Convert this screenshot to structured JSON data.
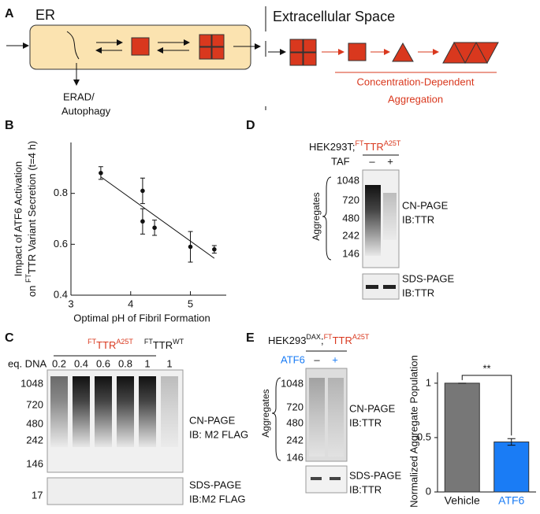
{
  "panel_a": {
    "label": "A",
    "er": "ER",
    "erad": [
      "ERAD/",
      "Autophagy"
    ],
    "extracellular": "Extracellular Space",
    "aggregation_note": [
      "Concentration-Dependent",
      "Aggregation"
    ]
  },
  "panel_c": {
    "label": "C",
    "construct_1": [
      "FT",
      "TTR",
      "A25T"
    ],
    "construct_2": [
      "FT",
      "TTR",
      "WT"
    ],
    "eq_dna_label": "eq. DNA",
    "lanes": [
      "0.2",
      "0.4",
      "0.6",
      "0.8",
      "1",
      "1"
    ],
    "markers": [
      "1048",
      "720",
      "480",
      "242",
      "146"
    ],
    "cn_page": [
      "CN-PAGE",
      "IB: M2 FLAG"
    ],
    "sds_page": [
      "SDS-PAGE",
      "IB:M2 FLAG"
    ],
    "sds_marker": "17"
  },
  "panel_d": {
    "label": "D",
    "cell": "HEK293T;",
    "construct": [
      "FT",
      "TTR",
      "A25T"
    ],
    "treatment": "TAF",
    "lanes": [
      "–",
      "+"
    ],
    "markers": [
      "1048",
      "720",
      "480",
      "242",
      "146"
    ],
    "aggregates": "Aggregates",
    "cn_page": [
      "CN-PAGE",
      "IB:TTR"
    ],
    "sds_page": [
      "SDS-PAGE",
      "IB:TTR"
    ]
  },
  "panel_e": {
    "label": "E",
    "cell": [
      "HEK293",
      "DAX",
      ";"
    ],
    "construct": [
      "FT",
      "TTR",
      "A25T"
    ],
    "treatment": "ATF6",
    "lanes": [
      "–",
      "+"
    ],
    "markers": [
      "1048",
      "720",
      "480",
      "242",
      "146"
    ],
    "aggregates": "Aggregates",
    "cn_page": [
      "CN-PAGE",
      "IB:TTR"
    ],
    "sds_page": [
      "SDS-PAGE",
      "IB:TTR"
    ]
  },
  "chart_data": [
    {
      "type": "scatter",
      "panel_label": "B",
      "y_label": [
        "Impact of ATF6 Activation",
        "on ",
        "FT",
        "TTR Variant Secretion (t=4 h)"
      ],
      "x_label": "Optimal pH of Fibril Formation",
      "x": [
        3.5,
        4.2,
        4.2,
        4.4,
        5.0,
        5.4
      ],
      "values": [
        0.88,
        0.81,
        0.69,
        0.665,
        0.59,
        0.58
      ],
      "errors": [
        0.025,
        0.05,
        0.05,
        0.03,
        0.06,
        0.015
      ],
      "color": "#111111",
      "fit": {
        "x": [
          3.5,
          5.4
        ],
        "y": [
          0.865,
          0.545
        ]
      },
      "xlim": [
        3,
        5.6
      ],
      "ylim": [
        0.4,
        1.0
      ],
      "xticks": [
        3,
        4,
        5
      ],
      "yticks": [
        0.4,
        0.6,
        0.8
      ]
    },
    {
      "type": "bar",
      "panel_label": "E",
      "y_label": "Normalized Aggregate Population",
      "categories": [
        "Vehicle",
        "ATF6"
      ],
      "values": [
        1,
        0.46
      ],
      "errors": [
        0,
        0.03
      ],
      "colors": [
        "#777777",
        "#1a7cf5"
      ],
      "significance": "**",
      "ylim": [
        0,
        1.1
      ],
      "yticks": [
        0,
        0.5,
        1
      ]
    }
  ]
}
